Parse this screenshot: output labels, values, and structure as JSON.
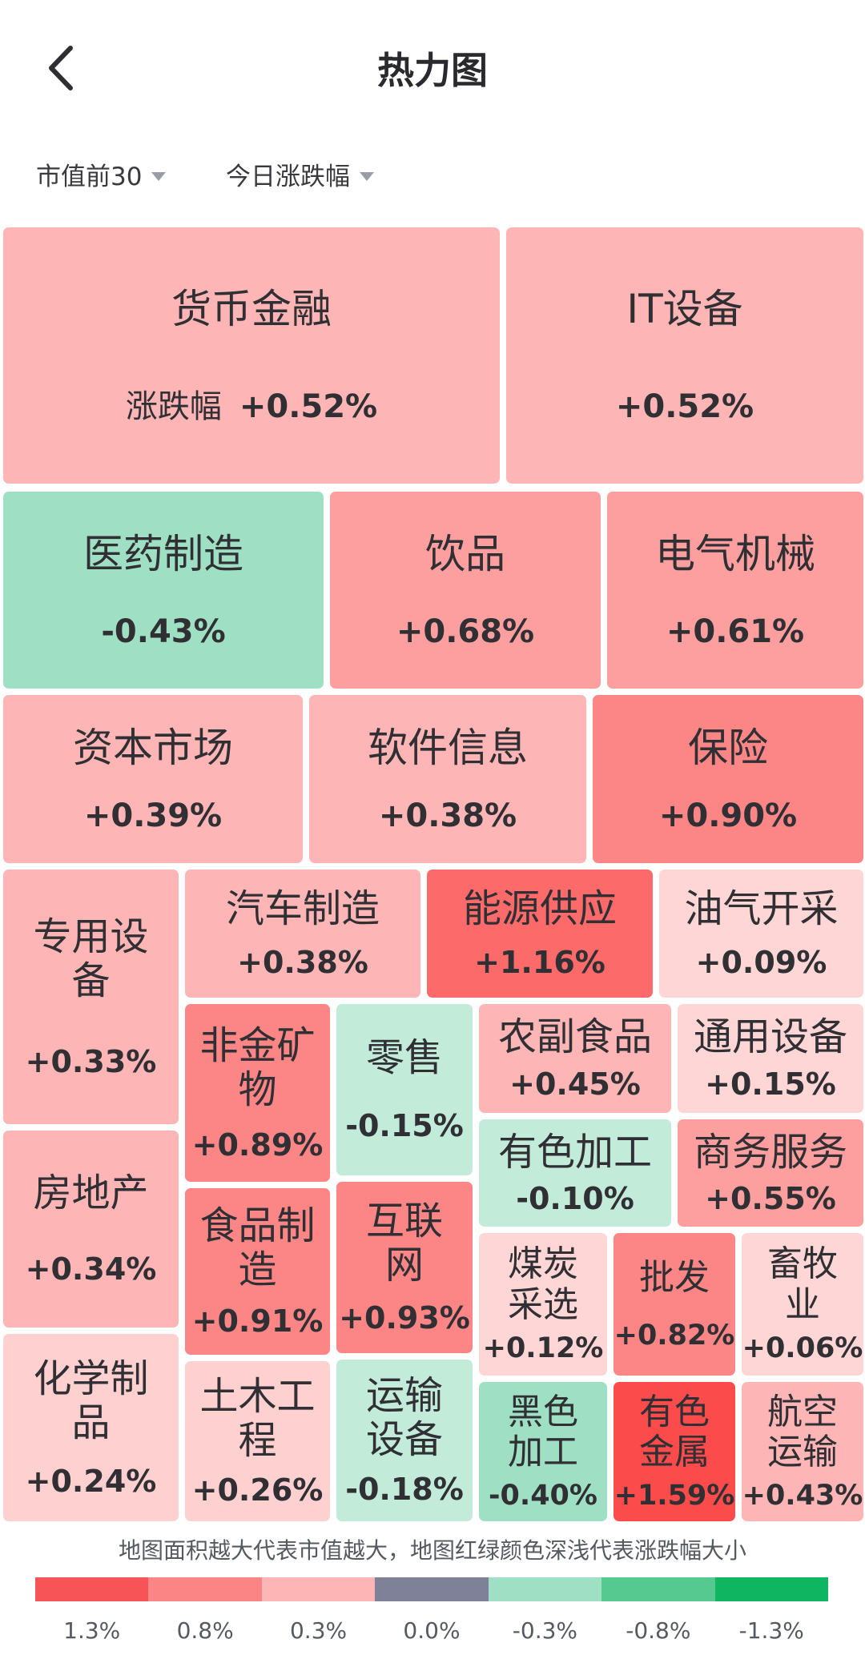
{
  "header": {
    "title": "热力图"
  },
  "filters": {
    "scope": "市值前30",
    "metric": "今日涨跌幅"
  },
  "tiles": [
    {
      "name": "货币金融",
      "value": "+0.52%",
      "value_label": "涨跌幅",
      "color": "#fdb5b5"
    },
    {
      "name": "IT设备",
      "value": "+0.52%",
      "color": "#fdb5b5"
    },
    {
      "name": "医药制造",
      "value": "-0.43%",
      "color": "#9fe0c4"
    },
    {
      "name": "饮品",
      "value": "+0.68%",
      "color": "#fd9f9f"
    },
    {
      "name": "电气机械",
      "value": "+0.61%",
      "color": "#fd9f9f"
    },
    {
      "name": "资本市场",
      "value": "+0.39%",
      "color": "#fdb5b5"
    },
    {
      "name": "软件信息",
      "value": "+0.38%",
      "color": "#fdb5b5"
    },
    {
      "name": "保险",
      "value": "+0.90%",
      "color": "#fc8585"
    },
    {
      "name": "专用设备",
      "value": "+0.33%",
      "color": "#fdb5b5"
    },
    {
      "name": "汽车制造",
      "value": "+0.38%",
      "color": "#fdb5b5"
    },
    {
      "name": "能源供应",
      "value": "+1.16%",
      "color": "#fc6a6a"
    },
    {
      "name": "油气开采",
      "value": "+0.09%",
      "color": "#fed6d6"
    },
    {
      "name": "非金矿物",
      "value": "+0.89%",
      "color": "#fc8585"
    },
    {
      "name": "零售",
      "value": "-0.15%",
      "color": "#c2ebd9"
    },
    {
      "name": "农副食品",
      "value": "+0.45%",
      "color": "#fdb5b5"
    },
    {
      "name": "通用设备",
      "value": "+0.15%",
      "color": "#fed6d6"
    },
    {
      "name": "有色加工",
      "value": "-0.10%",
      "color": "#c2ebd9"
    },
    {
      "name": "商务服务",
      "value": "+0.55%",
      "color": "#fd9f9f"
    },
    {
      "name": "房地产",
      "value": "+0.34%",
      "color": "#fdb5b5"
    },
    {
      "name": "食品制造",
      "value": "+0.91%",
      "color": "#fc8585"
    },
    {
      "name": "互联网",
      "value": "+0.93%",
      "color": "#fc8585"
    },
    {
      "name": "煤炭采选",
      "value": "+0.12%",
      "color": "#fed6d6"
    },
    {
      "name": "批发",
      "value": "+0.82%",
      "color": "#fc8585"
    },
    {
      "name": "畜牧业",
      "value": "+0.06%",
      "color": "#fed6d6"
    },
    {
      "name": "化学制品",
      "value": "+0.24%",
      "color": "#fed0d0"
    },
    {
      "name": "土木工程",
      "value": "+0.26%",
      "color": "#fed0d0"
    },
    {
      "name": "运输设备",
      "value": "-0.18%",
      "color": "#c2ebd9"
    },
    {
      "name": "黑色加工",
      "value": "-0.40%",
      "color": "#9fe0c4"
    },
    {
      "name": "有色金属",
      "value": "+1.59%",
      "color": "#fc4b4b"
    },
    {
      "name": "航空运输",
      "value": "+0.43%",
      "color": "#fdb5b5"
    }
  ],
  "footer": {
    "note": "地图面积越大代表市值越大，地图红绿颜色深浅代表涨跌幅大小",
    "legend": [
      {
        "label": "1.3%",
        "color": "#f65457"
      },
      {
        "label": "0.8%",
        "color": "#fb8585"
      },
      {
        "label": "0.3%",
        "color": "#fdb5b5"
      },
      {
        "label": "0.0%",
        "color": "#7f8199"
      },
      {
        "label": "-0.3%",
        "color": "#9fe0c4"
      },
      {
        "label": "-0.8%",
        "color": "#55c98f"
      },
      {
        "label": "-1.3%",
        "color": "#10b561"
      }
    ]
  }
}
